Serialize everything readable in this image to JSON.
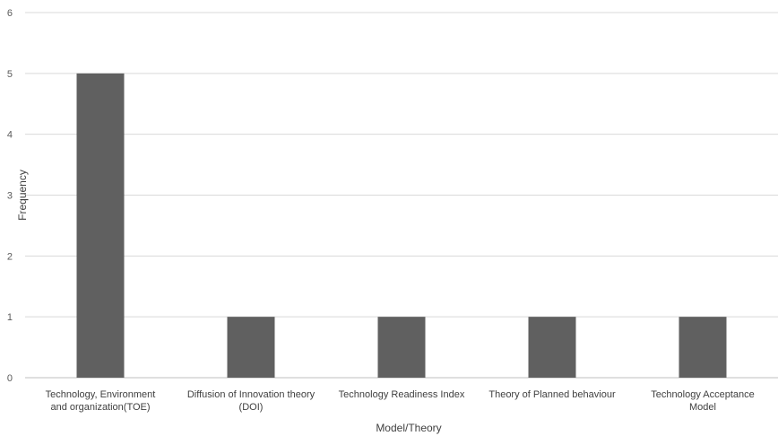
{
  "chart_data": {
    "type": "bar",
    "categories": [
      [
        "Technology, Environment",
        "and organization(TOE)"
      ],
      [
        "Diffusion of Innovation theory",
        "(DOI)"
      ],
      [
        "Technology Readiness Index"
      ],
      [
        "Theory of Planned behaviour"
      ],
      [
        "Technology Acceptance",
        "Model"
      ]
    ],
    "values": [
      5,
      1,
      1,
      1,
      1
    ],
    "xlabel": "Model/Theory",
    "ylabel": "Frequency",
    "ylim": [
      0,
      6
    ],
    "yticks": [
      "0",
      "1",
      "2",
      "3",
      "4",
      "5",
      "6"
    ],
    "grid": true,
    "colors": {
      "bar": "#606060",
      "grid": "#d9d9d9",
      "axis": "#bfbfbf"
    }
  }
}
